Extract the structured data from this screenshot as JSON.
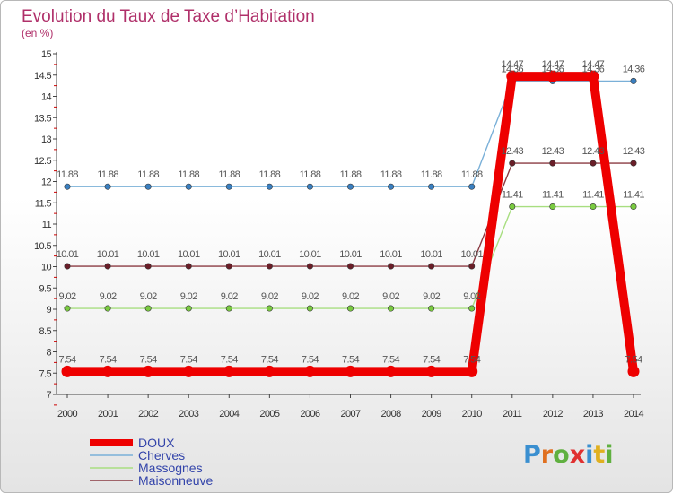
{
  "chart_data": {
    "type": "line",
    "title": "Evolution du Taux de Taxe d’Habitation",
    "subtitle": "(en %)",
    "xlabel": "",
    "ylabel": "",
    "x": [
      "2000",
      "2001",
      "2002",
      "2003",
      "2004",
      "2005",
      "2006",
      "2007",
      "2008",
      "2009",
      "2010",
      "2011",
      "2012",
      "2013",
      "2014"
    ],
    "ylim": [
      7,
      15
    ],
    "ystep": 0.5,
    "yticks": [
      "7",
      "7.5",
      "8",
      "8.5",
      "9",
      "9.5",
      "10",
      "10.5",
      "11",
      "11.5",
      "12",
      "12.5",
      "13",
      "13.5",
      "14",
      "14.5",
      "15"
    ],
    "grid": false,
    "legend_position": "bottom-left",
    "series": [
      {
        "name": "Cherves",
        "color": "#7ab0d8",
        "marker": "#3a7fc0",
        "values": [
          11.88,
          11.88,
          11.88,
          11.88,
          11.88,
          11.88,
          11.88,
          11.88,
          11.88,
          11.88,
          11.88,
          14.36,
          14.36,
          14.36,
          14.36
        ],
        "labels": [
          "11.88",
          "11.88",
          "11.88",
          "11.88",
          "11.88",
          "11.88",
          "11.88",
          "11.88",
          "11.88",
          "11.88",
          "11.88",
          "14.36",
          "14.36",
          "14.36",
          "14.36"
        ]
      },
      {
        "name": "Massognes",
        "color": "#a8de80",
        "marker": "#7acb40",
        "values": [
          9.02,
          9.02,
          9.02,
          9.02,
          9.02,
          9.02,
          9.02,
          9.02,
          9.02,
          9.02,
          9.02,
          11.41,
          11.41,
          11.41,
          11.41
        ],
        "labels": [
          "9.02",
          "9.02",
          "9.02",
          "9.02",
          "9.02",
          "9.02",
          "9.02",
          "9.02",
          "9.02",
          "9.02",
          "9.02",
          "11.41",
          "11.41",
          "11.41",
          "11.41"
        ]
      },
      {
        "name": "Maisonneuve",
        "color": "#8a3a42",
        "marker": "#6a1e28",
        "values": [
          10.01,
          10.01,
          10.01,
          10.01,
          10.01,
          10.01,
          10.01,
          10.01,
          10.01,
          10.01,
          10.01,
          12.43,
          12.43,
          12.43,
          12.43
        ],
        "labels": [
          "10.01",
          "10.01",
          "10.01",
          "10.01",
          "10.01",
          "10.01",
          "10.01",
          "10.01",
          "10.01",
          "10.01",
          "10.01",
          "12.43",
          "12.43",
          "12.43",
          "12.43"
        ]
      },
      {
        "name": "DOUX",
        "color": "#ee0000",
        "marker": "#ee0000",
        "bold": true,
        "values": [
          7.54,
          7.54,
          7.54,
          7.54,
          7.54,
          7.54,
          7.54,
          7.54,
          7.54,
          7.54,
          7.54,
          14.47,
          14.47,
          14.47,
          7.54
        ],
        "labels": [
          "7.54",
          "7.54",
          "7.54",
          "7.54",
          "7.54",
          "7.54",
          "7.54",
          "7.54",
          "7.54",
          "7.54",
          "7.54",
          "14.47",
          "14.47",
          "14.47",
          "7.54"
        ]
      }
    ],
    "legend_order": [
      "DOUX",
      "Cherves",
      "Massognes",
      "Maisonneuve"
    ],
    "legend_text_color": "#3344aa"
  },
  "logo": {
    "text": "Proxiti",
    "letter_colors": [
      "#3a8fd0",
      "#e07020",
      "#60b040",
      "#e03030",
      "#3a8fd0",
      "#e0b020",
      "#60b040"
    ]
  }
}
